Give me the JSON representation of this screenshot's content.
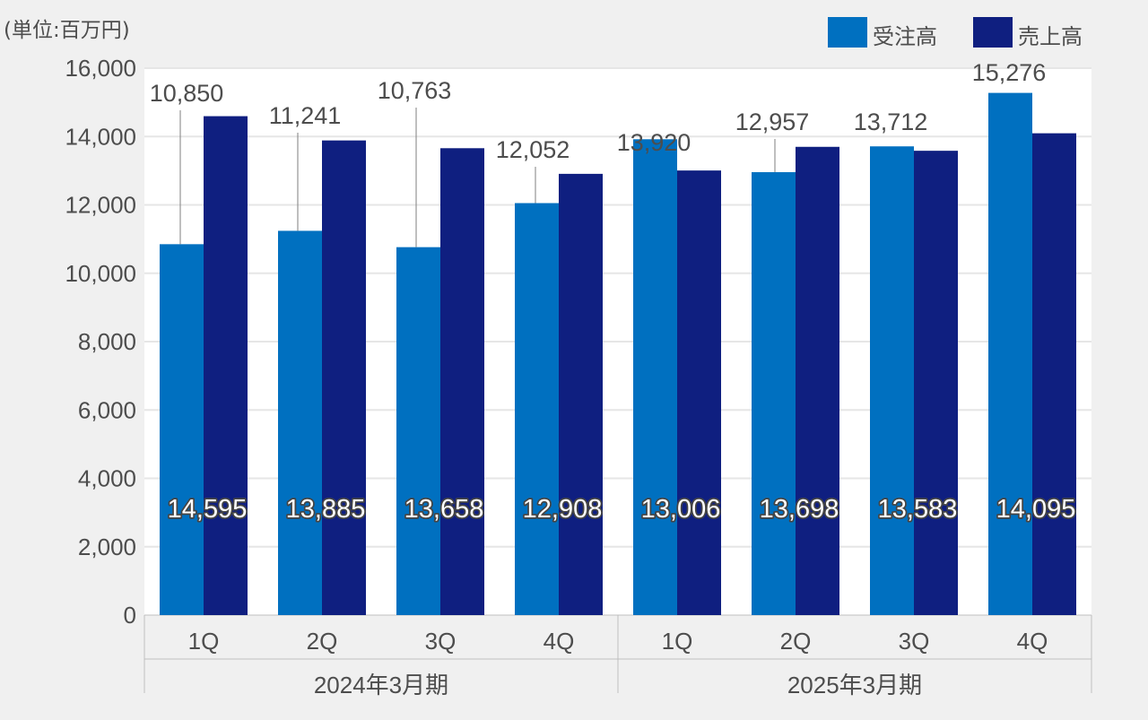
{
  "unit_label": "(単位:百万円)",
  "colors": {
    "orders": "#0070c0",
    "sales": "#0f1f80",
    "background": "#f0f0f0",
    "plot": "#ffffff",
    "grid": "#e6e6e6"
  },
  "chart_data": {
    "type": "bar",
    "groups": [
      {
        "label": "2024年3月期",
        "categories": [
          "1Q",
          "2Q",
          "3Q",
          "4Q"
        ]
      },
      {
        "label": "2025年3月期",
        "categories": [
          "1Q",
          "2Q",
          "3Q",
          "4Q"
        ]
      }
    ],
    "categories": [
      "1Q",
      "2Q",
      "3Q",
      "4Q",
      "1Q",
      "2Q",
      "3Q",
      "4Q"
    ],
    "series": [
      {
        "name": "受注高",
        "values": [
          10850,
          11241,
          10763,
          12052,
          13920,
          12957,
          13712,
          15276
        ],
        "labels": [
          "10,850",
          "11,241",
          "10,763",
          "12,052",
          "13,920",
          "12,957",
          "13,712",
          "15,276"
        ]
      },
      {
        "name": "売上高",
        "values": [
          14595,
          13885,
          13658,
          12908,
          13006,
          13698,
          13583,
          14095
        ],
        "labels": [
          "14,595",
          "13,885",
          "13,658",
          "12,908",
          "13,006",
          "13,698",
          "13,583",
          "14,095"
        ]
      }
    ],
    "ylim": [
      0,
      16000
    ],
    "yticks": [
      0,
      2000,
      4000,
      6000,
      8000,
      10000,
      12000,
      14000,
      16000
    ],
    "ytick_labels": [
      "0",
      "2,000",
      "4,000",
      "6,000",
      "8,000",
      "10,000",
      "12,000",
      "14,000",
      "16,000"
    ],
    "grid": true,
    "legend_position": "top-right"
  }
}
